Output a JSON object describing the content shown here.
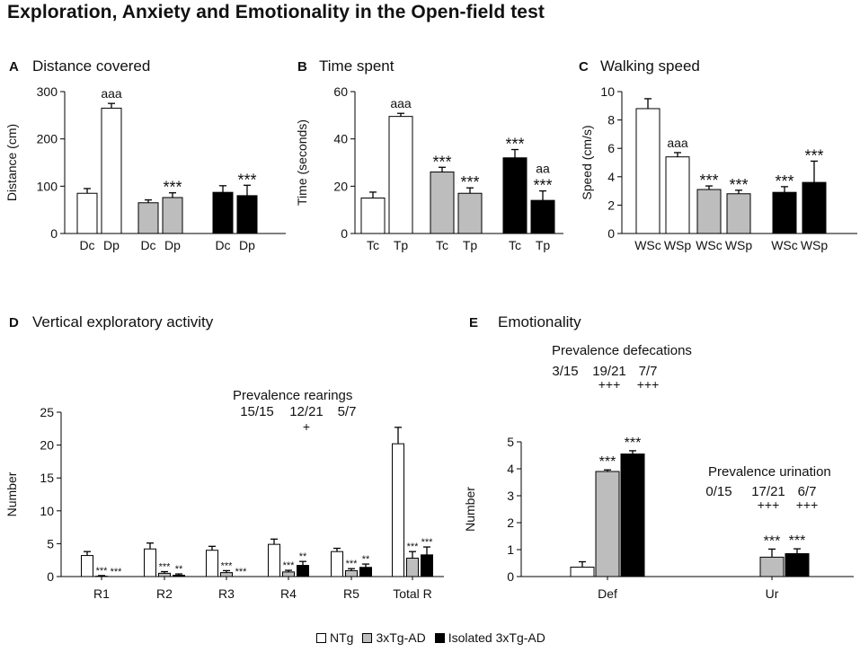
{
  "figure_title": "Exploration, Anxiety and Emotionality in the Open-field test",
  "colors": {
    "NTg": "#ffffff",
    "3xTg-AD": "#bdbdbd",
    "Isolated 3xTg-AD": "#000000",
    "stroke": "#000000"
  },
  "legend": [
    {
      "label": "NTg",
      "color": "#ffffff"
    },
    {
      "label": "3xTg-AD",
      "color": "#bdbdbd"
    },
    {
      "label": "Isolated 3xTg-AD",
      "color": "#000000"
    }
  ],
  "chart_data": [
    {
      "id": "A",
      "type": "bar",
      "panel_letter": "A",
      "title": "Distance covered",
      "ylabel": "Distance (cm)",
      "ylim": [
        0,
        300
      ],
      "yticks": [
        0,
        100,
        200,
        300
      ],
      "groups": [
        {
          "group": "NTg",
          "bars": [
            {
              "label": "Dc",
              "value": 85,
              "err": 10,
              "sig": []
            },
            {
              "label": "Dp",
              "value": 265,
              "err": 10,
              "sig": [
                "aaa"
              ]
            }
          ]
        },
        {
          "group": "3xTg-AD",
          "bars": [
            {
              "label": "Dc",
              "value": 65,
              "err": 6,
              "sig": []
            },
            {
              "label": "Dp",
              "value": 76,
              "err": 10,
              "sig": [
                "***"
              ]
            }
          ]
        },
        {
          "group": "Isolated 3xTg-AD",
          "bars": [
            {
              "label": "Dc",
              "value": 87,
              "err": 14,
              "sig": []
            },
            {
              "label": "Dp",
              "value": 80,
              "err": 22,
              "sig": [
                "***"
              ]
            }
          ]
        }
      ]
    },
    {
      "id": "B",
      "type": "bar",
      "panel_letter": "B",
      "title": "Time spent",
      "ylabel": "Time  (seconds)",
      "ylim": [
        0,
        60
      ],
      "yticks": [
        0,
        20,
        40,
        60
      ],
      "groups": [
        {
          "group": "NTg",
          "bars": [
            {
              "label": "Tc",
              "value": 15,
              "err": 2.5,
              "sig": []
            },
            {
              "label": "Tp",
              "value": 49.5,
              "err": 1.3,
              "sig": [
                "aaa"
              ]
            }
          ]
        },
        {
          "group": "3xTg-AD",
          "bars": [
            {
              "label": "Tc",
              "value": 26,
              "err": 2,
              "sig": [
                "***"
              ]
            },
            {
              "label": "Tp",
              "value": 17,
              "err": 2.3,
              "sig": [
                "***"
              ]
            }
          ]
        },
        {
          "group": "Isolated 3xTg-AD",
          "bars": [
            {
              "label": "Tc",
              "value": 32,
              "err": 3.5,
              "sig": [
                "***"
              ]
            },
            {
              "label": "Tp",
              "value": 14,
              "err": 4,
              "sig": [
                "***",
                "aa"
              ]
            }
          ]
        }
      ]
    },
    {
      "id": "C",
      "type": "bar",
      "panel_letter": "C",
      "title": "Walking speed",
      "ylabel": "Speed (cm/s)",
      "ylim": [
        0,
        10
      ],
      "yticks": [
        0,
        2,
        4,
        6,
        8,
        10
      ],
      "groups": [
        {
          "group": "NTg",
          "bars": [
            {
              "label": "WSc",
              "value": 8.8,
              "err": 0.7,
              "sig": []
            },
            {
              "label": "WSp",
              "value": 5.4,
              "err": 0.3,
              "sig": [
                "aaa"
              ]
            }
          ]
        },
        {
          "group": "3xTg-AD",
          "bars": [
            {
              "label": "WSc",
              "value": 3.1,
              "err": 0.25,
              "sig": [
                "***"
              ]
            },
            {
              "label": "WSp",
              "value": 2.8,
              "err": 0.25,
              "sig": [
                "***"
              ]
            }
          ]
        },
        {
          "group": "Isolated 3xTg-AD",
          "bars": [
            {
              "label": "WSc",
              "value": 2.9,
              "err": 0.4,
              "sig": [
                "***"
              ]
            },
            {
              "label": "WSp",
              "value": 3.6,
              "err": 1.5,
              "sig": [
                "***"
              ]
            }
          ]
        }
      ]
    },
    {
      "id": "D",
      "type": "bar",
      "panel_letter": "D",
      "title": "Vertical exploratory activity",
      "ylabel": "Number",
      "ylim": [
        0,
        25
      ],
      "yticks": [
        0,
        5,
        10,
        15,
        20,
        25
      ],
      "categories": [
        "R1",
        "R2",
        "R3",
        "R4",
        "R5",
        "Total R"
      ],
      "series": [
        {
          "name": "NTg",
          "values": [
            3.2,
            4.2,
            4.0,
            4.9,
            3.8,
            20.2
          ],
          "err": [
            0.6,
            0.9,
            0.6,
            0.8,
            0.5,
            2.5
          ],
          "sig": [
            "",
            "",
            "",
            "",
            "",
            ""
          ]
        },
        {
          "name": "3xTg-AD",
          "values": [
            0.05,
            0.5,
            0.6,
            0.7,
            0.9,
            2.8
          ],
          "err": [
            0.1,
            0.25,
            0.3,
            0.25,
            0.3,
            1.0
          ],
          "sig": [
            "***",
            "***",
            "***",
            "***",
            "***",
            "***"
          ]
        },
        {
          "name": "Isolated 3xTg-AD",
          "values": [
            0,
            0.2,
            0,
            1.7,
            1.4,
            3.3
          ],
          "err": [
            0,
            0.2,
            0,
            0.6,
            0.5,
            1.2
          ],
          "sig": [
            "***",
            "**",
            "***",
            "**",
            "**",
            "***"
          ]
        }
      ],
      "prevalence": {
        "label": "Prevalence rearings",
        "values": [
          "15/15",
          "12/21",
          "5/7"
        ],
        "marks": [
          "",
          "+",
          ""
        ]
      }
    },
    {
      "id": "E",
      "type": "bar",
      "panel_letter": "E",
      "title": "Emotionality",
      "ylabel": "Number",
      "ylim": [
        0,
        5
      ],
      "yticks": [
        0,
        1,
        2,
        3,
        4,
        5
      ],
      "categories": [
        "Def",
        "Ur"
      ],
      "series": [
        {
          "name": "NTg",
          "values": [
            0.35,
            0
          ],
          "err": [
            0.2,
            0
          ],
          "sig": [
            "",
            ""
          ]
        },
        {
          "name": "3xTg-AD",
          "values": [
            3.9,
            0.72
          ],
          "err": [
            0.06,
            0.3
          ],
          "sig": [
            "***",
            "***"
          ]
        },
        {
          "name": "Isolated 3xTg-AD",
          "values": [
            4.55,
            0.85
          ],
          "err": [
            0.12,
            0.18
          ],
          "sig": [
            "***",
            "***"
          ]
        }
      ],
      "prevalence": [
        {
          "label": "Prevalence defecations",
          "values": [
            "3/15",
            "19/21",
            "7/7"
          ],
          "marks": [
            "",
            "+++",
            "+++"
          ]
        },
        {
          "label": "Prevalence urination",
          "values": [
            "0/15",
            "17/21",
            "6/7"
          ],
          "marks": [
            "",
            "+++",
            "+++"
          ]
        }
      ]
    }
  ]
}
